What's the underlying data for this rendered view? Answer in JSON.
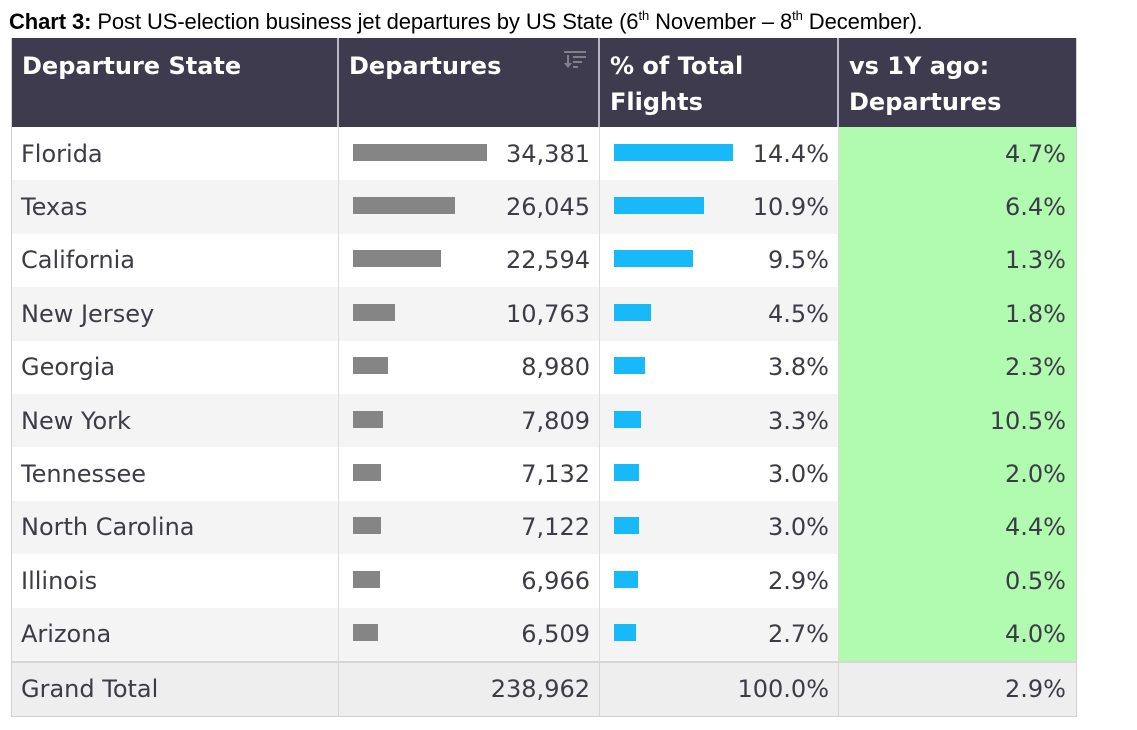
{
  "title": {
    "bold": "Chart 3:",
    "text_a": " Post US-election business jet departures by US State (6",
    "sup1": "th",
    "text_b": " November – 8",
    "sup2": "th",
    "text_c": " December)."
  },
  "table": {
    "headers": {
      "state": "Departure State",
      "departures": "Departures",
      "pct_line1": "% of Total",
      "pct_line2": "Flights",
      "yoy_line1": "vs 1Y ago:",
      "yoy_line2": "Departures"
    },
    "sort_icon": "sort-descending-icon",
    "rows": [
      {
        "state": "Florida",
        "departures": "34,381",
        "pct": "14.4%",
        "yoy": "4.7%"
      },
      {
        "state": "Texas",
        "departures": "26,045",
        "pct": "10.9%",
        "yoy": "6.4%"
      },
      {
        "state": "California",
        "departures": "22,594",
        "pct": "9.5%",
        "yoy": "1.3%"
      },
      {
        "state": "New Jersey",
        "departures": "10,763",
        "pct": "4.5%",
        "yoy": "1.8%"
      },
      {
        "state": "Georgia",
        "departures": "8,980",
        "pct": "3.8%",
        "yoy": "2.3%"
      },
      {
        "state": "New York",
        "departures": "7,809",
        "pct": "3.3%",
        "yoy": "10.5%"
      },
      {
        "state": "Tennessee",
        "departures": "7,132",
        "pct": "3.0%",
        "yoy": "2.0%"
      },
      {
        "state": "North Carolina",
        "departures": "7,122",
        "pct": "3.0%",
        "yoy": "4.4%"
      },
      {
        "state": "Illinois",
        "departures": "6,966",
        "pct": "2.9%",
        "yoy": "0.5%"
      },
      {
        "state": "Arizona",
        "departures": "6,509",
        "pct": "2.7%",
        "yoy": "4.0%"
      }
    ],
    "total": {
      "state": "Grand Total",
      "departures": "238,962",
      "pct": "100.0%",
      "yoy": "2.9%"
    }
  },
  "colors": {
    "header_bg": "#3e3b4f",
    "departures_bar": "#858585",
    "pct_bar": "#17b9f8",
    "yoy_highlight": "#b1fbb0"
  },
  "chart_data": {
    "type": "table",
    "title": "Chart 3: Post US-election business jet departures by US State (6th November – 8th December).",
    "columns": [
      "Departure State",
      "Departures",
      "% of Total Flights",
      "vs 1Y ago: Departures"
    ],
    "categories": [
      "Florida",
      "Texas",
      "California",
      "New Jersey",
      "Georgia",
      "New York",
      "Tennessee",
      "North Carolina",
      "Illinois",
      "Arizona"
    ],
    "series": [
      {
        "name": "Departures",
        "values": [
          34381,
          26045,
          22594,
          10763,
          8980,
          7809,
          7132,
          7122,
          6966,
          6509
        ],
        "display": "bar"
      },
      {
        "name": "% of Total Flights",
        "values": [
          14.4,
          10.9,
          9.5,
          4.5,
          3.8,
          3.3,
          3.0,
          3.0,
          2.9,
          2.7
        ],
        "display": "bar"
      },
      {
        "name": "vs 1Y ago: Departures",
        "values": [
          4.7,
          6.4,
          1.3,
          1.8,
          2.3,
          10.5,
          2.0,
          4.4,
          0.5,
          4.0
        ],
        "display": "highlighted"
      }
    ],
    "totals": {
      "Departures": 238962,
      "% of Total Flights": 100.0,
      "vs 1Y ago: Departures": 2.9
    },
    "bar_scale_max": {
      "Departures": 34381,
      "% of Total Flights": 14.4
    }
  }
}
